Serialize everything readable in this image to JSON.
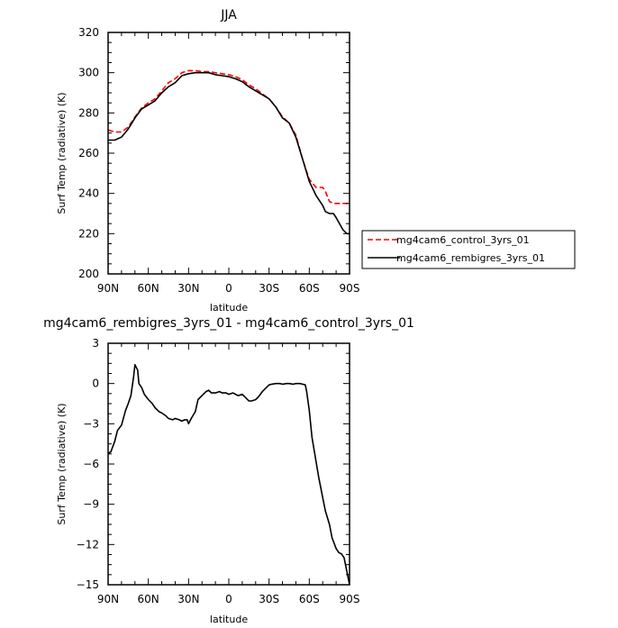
{
  "chart_data": [
    {
      "type": "line",
      "title": "JJA",
      "xlabel": "latitude",
      "ylabel": "Surf Temp (radiative) (K)",
      "xlim": [
        90,
        -90
      ],
      "ylim": [
        200,
        320
      ],
      "x_ticks": [
        90,
        60,
        30,
        0,
        -30,
        -60,
        -90
      ],
      "x_tick_labels": [
        "90N",
        "60N",
        "30N",
        "0",
        "30S",
        "60S",
        "90S"
      ],
      "y_ticks": [
        200,
        220,
        240,
        260,
        280,
        300,
        320
      ],
      "y_tick_labels": [
        "200",
        "220",
        "240",
        "260",
        "280",
        "300",
        "320"
      ],
      "legend_position": "outside-right",
      "series": [
        {
          "name": "mg4cam6_control_3yrs_01",
          "color": "#ff0000",
          "dash": "dashed",
          "x": [
            90,
            85,
            80,
            75,
            70,
            65,
            60,
            55,
            50,
            45,
            40,
            35,
            30,
            25,
            20,
            15,
            10,
            5,
            0,
            -5,
            -10,
            -15,
            -20,
            -25,
            -30,
            -35,
            -40,
            -45,
            -50,
            -55,
            -60,
            -65,
            -70,
            -72,
            -75,
            -78,
            -80,
            -85,
            -88,
            -90
          ],
          "y": [
            271.5,
            270.5,
            270.5,
            273,
            278,
            282.5,
            285,
            287,
            291,
            295,
            297,
            300,
            301,
            301,
            300.5,
            300.5,
            300,
            299.5,
            299,
            298,
            296.5,
            294,
            292,
            289.5,
            287,
            283,
            278,
            275,
            269,
            257,
            247,
            243,
            243,
            241,
            236,
            235,
            235,
            235,
            235,
            235
          ]
        },
        {
          "name": "mg4cam6_rembigres_3yrs_01",
          "color": "#000000",
          "dash": "solid",
          "x": [
            90,
            85,
            80,
            75,
            70,
            65,
            60,
            55,
            50,
            45,
            40,
            35,
            30,
            25,
            20,
            15,
            10,
            5,
            0,
            -5,
            -10,
            -15,
            -20,
            -25,
            -30,
            -35,
            -40,
            -45,
            -50,
            -55,
            -60,
            -65,
            -70,
            -72,
            -75,
            -78,
            -80,
            -85,
            -88,
            -90
          ],
          "y": [
            266.5,
            266.5,
            268,
            272,
            277.5,
            282,
            284,
            286,
            290,
            293,
            295,
            298.5,
            299.5,
            300,
            300,
            300,
            299,
            298.5,
            298,
            297,
            295.5,
            293,
            291,
            289,
            287,
            283,
            277.5,
            275,
            268,
            257,
            246,
            239,
            234,
            231,
            230,
            230,
            228,
            222,
            220,
            220
          ]
        }
      ]
    },
    {
      "type": "line",
      "title": "mg4cam6_rembigres_3yrs_01 - mg4cam6_control_3yrs_01",
      "xlabel": "latitude",
      "ylabel": "Surf Temp (radiative) (K)",
      "xlim": [
        90,
        -90
      ],
      "ylim": [
        -15,
        3
      ],
      "x_ticks": [
        90,
        60,
        30,
        0,
        -30,
        -60,
        -90
      ],
      "x_tick_labels": [
        "90N",
        "60N",
        "30N",
        "0",
        "30S",
        "60S",
        "90S"
      ],
      "y_ticks": [
        -15,
        -12,
        -9,
        -6,
        -3,
        0,
        3
      ],
      "y_tick_labels": [
        "−15",
        "−12",
        "−9",
        "−6",
        "−3",
        "0",
        "3"
      ],
      "series": [
        {
          "color": "#000000",
          "dash": "solid",
          "x": [
            90,
            88,
            85,
            83,
            80,
            77,
            75,
            73,
            71,
            70,
            68,
            67,
            65,
            63,
            60,
            57,
            55,
            52,
            50,
            47,
            45,
            42,
            40,
            37,
            35,
            33,
            31,
            30,
            28,
            25,
            23,
            20,
            17,
            15,
            13,
            10,
            7,
            5,
            2,
            0,
            -3,
            -5,
            -7,
            -10,
            -12,
            -15,
            -17,
            -20,
            -22,
            -25,
            -27,
            -30,
            -32,
            -35,
            -38,
            -40,
            -43,
            -45,
            -48,
            -50,
            -53,
            -55,
            -57,
            -58,
            -60,
            -62,
            -65,
            -67,
            -70,
            -72,
            -75,
            -77,
            -80,
            -82,
            -84,
            -86,
            -88,
            -90
          ],
          "y": [
            -5.2,
            -5.1,
            -4.3,
            -3.5,
            -3.1,
            -2.0,
            -1.5,
            -0.9,
            0.5,
            1.4,
            1.0,
            0.0,
            -0.3,
            -0.8,
            -1.2,
            -1.5,
            -1.8,
            -2.1,
            -2.2,
            -2.4,
            -2.6,
            -2.7,
            -2.6,
            -2.7,
            -2.8,
            -2.7,
            -2.7,
            -3.0,
            -2.6,
            -2.1,
            -1.2,
            -0.9,
            -0.6,
            -0.5,
            -0.7,
            -0.7,
            -0.6,
            -0.7,
            -0.7,
            -0.8,
            -0.7,
            -0.8,
            -0.9,
            -0.8,
            -1.0,
            -1.3,
            -1.3,
            -1.2,
            -1.0,
            -0.6,
            -0.4,
            -0.1,
            -0.05,
            0.0,
            0.0,
            -0.05,
            0.0,
            0.0,
            -0.05,
            0.0,
            0.0,
            -0.05,
            -0.1,
            -0.6,
            -2.0,
            -4.0,
            -5.8,
            -7.0,
            -8.5,
            -9.5,
            -10.5,
            -11.5,
            -12.3,
            -12.6,
            -12.7,
            -13.0,
            -14.0,
            -15.0
          ]
        }
      ]
    }
  ]
}
